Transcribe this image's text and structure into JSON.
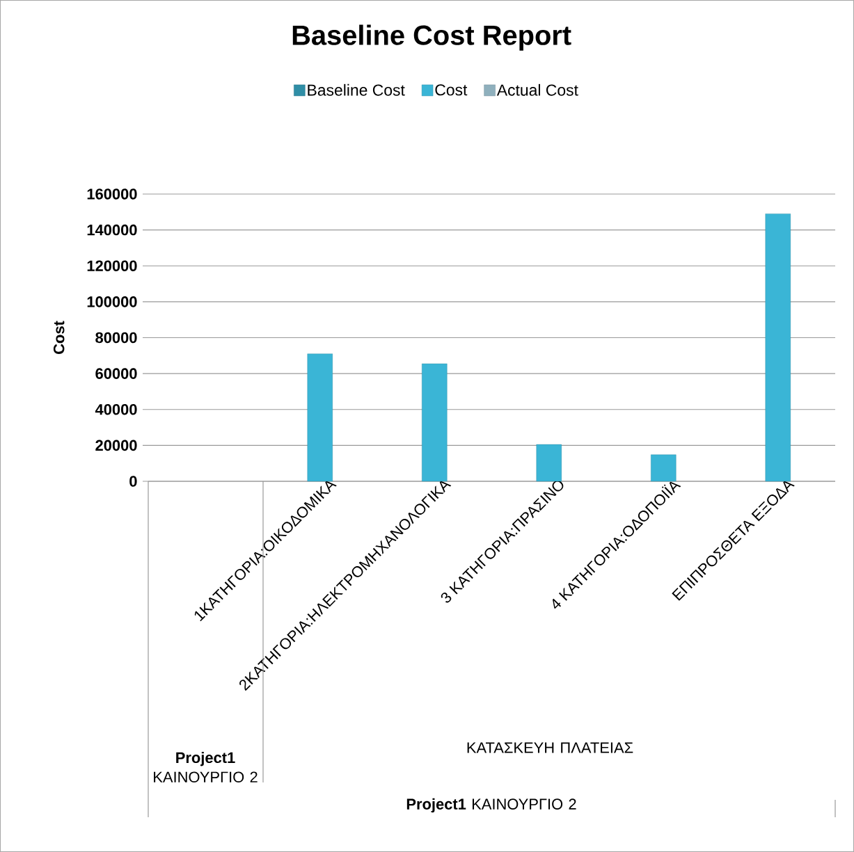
{
  "chart_data": {
    "type": "bar",
    "title": "Baseline Cost Report",
    "ylabel": "Cost",
    "categories": [
      null,
      "1ΚΑΤΗΓΟΡΙΑ:ΟΙΚΟΔΟΜΙΚΑ",
      "2ΚΑΤΗΓΟΡΙΑ:ΗΛΕΚΤΡΟΜΗΧΑΝΟΛΟΓΙΚΑ",
      "3 ΚΑΤΗΓΟΡΙΑ:ΠΡΑΣΙΝΟ",
      "4 ΚΑΤΗΓΟΡΙΑ:ΟΔΟΠΟΙΪΑ",
      "ΕΠΙΠΡΟΣΘΕΤΑ ΕΞΟΔΑ"
    ],
    "series": [
      {
        "name": "Baseline Cost",
        "color": "#2f8ea6",
        "values": [
          null,
          null,
          null,
          null,
          null,
          null
        ]
      },
      {
        "name": "Cost",
        "color": "#3ab5d6",
        "values": [
          null,
          71000,
          65500,
          20500,
          14800,
          149000
        ]
      },
      {
        "name": "Actual Cost",
        "color": "#8fb0bd",
        "values": [
          null,
          null,
          null,
          null,
          null,
          null
        ]
      }
    ],
    "ylim": [
      0,
      160000
    ],
    "yticks": [
      0,
      20000,
      40000,
      60000,
      80000,
      100000,
      120000,
      140000,
      160000
    ],
    "grid": "y",
    "legend": "top",
    "annotations": [
      "**Project1** ΚΑΙΝΟΥΡΓΙΟ 2",
      "ΚΑΤΑΣΚΕΥΗ ΠΛΑΤΕΙΑΣ",
      "**Project1** ΚΑΙΝΟΥΡΓΙΟ 2"
    ]
  }
}
